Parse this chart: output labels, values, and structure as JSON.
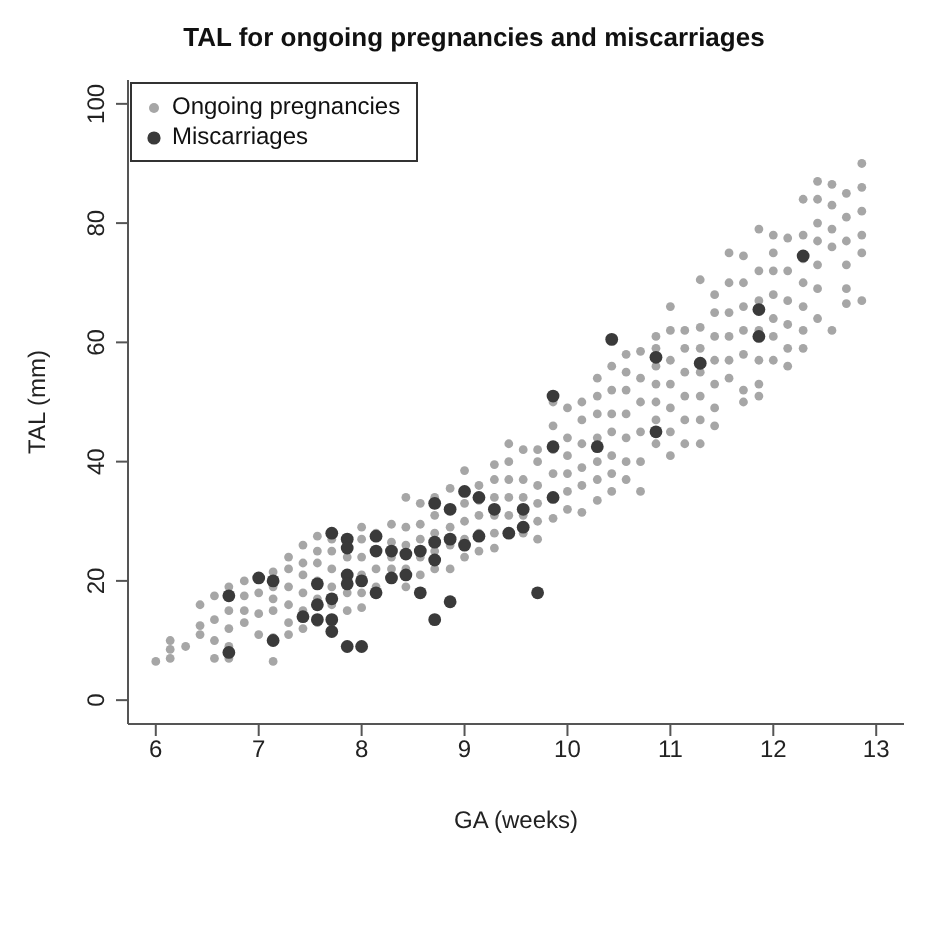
{
  "chart_data": {
    "type": "scatter",
    "title": "TAL for ongoing pregnancies and miscarriages",
    "xlabel": "GA (weeks)",
    "ylabel": "TAL (mm)",
    "xlim": [
      5.73,
      13.27
    ],
    "ylim": [
      -4,
      104
    ],
    "xticks": [
      6,
      7,
      8,
      9,
      10,
      11,
      12,
      13
    ],
    "yticks": [
      0,
      20,
      40,
      60,
      80,
      100
    ],
    "legend": "top left",
    "marker": "circle",
    "series": [
      {
        "name": "Ongoing pregnancies",
        "color": "#a6a6a6",
        "x": [
          6.0,
          6.14,
          6.14,
          6.14,
          6.29,
          6.43,
          6.43,
          6.43,
          6.57,
          6.57,
          6.57,
          6.57,
          6.71,
          6.71,
          6.71,
          6.71,
          6.71,
          6.86,
          6.86,
          6.86,
          6.86,
          7.0,
          7.0,
          7.0,
          7.14,
          7.14,
          7.14,
          7.14,
          7.14,
          7.14,
          7.29,
          7.29,
          7.29,
          7.29,
          7.29,
          7.29,
          7.43,
          7.43,
          7.43,
          7.43,
          7.43,
          7.43,
          7.57,
          7.57,
          7.57,
          7.57,
          7.57,
          7.57,
          7.71,
          7.71,
          7.71,
          7.71,
          7.71,
          7.71,
          7.86,
          7.86,
          7.86,
          8.0,
          8.0,
          8.0,
          8.0,
          8.0,
          8.0,
          8.14,
          8.14,
          8.14,
          8.29,
          8.29,
          8.29,
          8.29,
          8.43,
          8.43,
          8.43,
          8.43,
          8.43,
          8.57,
          8.57,
          8.57,
          8.57,
          8.57,
          8.71,
          8.71,
          8.71,
          8.71,
          8.71,
          8.86,
          8.86,
          8.86,
          8.86,
          9.0,
          9.0,
          9.0,
          9.0,
          9.0,
          9.14,
          9.14,
          9.14,
          9.14,
          9.14,
          9.29,
          9.29,
          9.29,
          9.29,
          9.29,
          9.29,
          9.43,
          9.43,
          9.43,
          9.43,
          9.43,
          9.57,
          9.57,
          9.57,
          9.57,
          9.57,
          9.71,
          9.71,
          9.71,
          9.71,
          9.71,
          9.71,
          9.86,
          9.86,
          9.86,
          9.86,
          9.86,
          10.0,
          10.0,
          10.0,
          10.0,
          10.0,
          10.0,
          10.14,
          10.14,
          10.14,
          10.14,
          10.14,
          10.14,
          10.29,
          10.29,
          10.29,
          10.29,
          10.29,
          10.29,
          10.29,
          10.43,
          10.43,
          10.43,
          10.43,
          10.43,
          10.43,
          10.43,
          10.57,
          10.57,
          10.57,
          10.57,
          10.57,
          10.57,
          10.57,
          10.71,
          10.71,
          10.71,
          10.71,
          10.71,
          10.71,
          10.86,
          10.86,
          10.86,
          10.86,
          10.86,
          10.86,
          10.86,
          11.0,
          11.0,
          11.0,
          11.0,
          11.0,
          11.0,
          11.0,
          11.14,
          11.14,
          11.14,
          11.14,
          11.14,
          11.14,
          11.29,
          11.29,
          11.29,
          11.29,
          11.29,
          11.29,
          11.29,
          11.43,
          11.43,
          11.43,
          11.43,
          11.43,
          11.43,
          11.43,
          11.57,
          11.57,
          11.57,
          11.57,
          11.57,
          11.57,
          11.71,
          11.71,
          11.71,
          11.71,
          11.71,
          11.71,
          11.71,
          11.86,
          11.86,
          11.86,
          11.86,
          11.86,
          11.86,
          11.86,
          12.0,
          12.0,
          12.0,
          12.0,
          12.0,
          12.0,
          12.0,
          12.14,
          12.14,
          12.14,
          12.14,
          12.14,
          12.14,
          12.29,
          12.29,
          12.29,
          12.29,
          12.29,
          12.29,
          12.29,
          12.43,
          12.43,
          12.43,
          12.43,
          12.43,
          12.43,
          12.43,
          12.57,
          12.57,
          12.57,
          12.57,
          12.57,
          12.71,
          12.71,
          12.71,
          12.71,
          12.71,
          12.71,
          12.86,
          12.86,
          12.86,
          12.86,
          12.86,
          12.86
        ],
        "values": [
          6.5,
          7,
          8.5,
          10,
          9,
          11,
          12.5,
          16,
          7,
          10,
          13.5,
          17.5,
          7,
          9,
          12,
          15,
          19,
          13,
          15,
          17.5,
          20,
          11,
          14.5,
          18,
          6.5,
          10.5,
          15,
          17,
          19,
          21.5,
          11,
          13,
          16,
          19,
          22,
          24,
          12,
          15,
          18,
          21,
          23,
          26,
          13,
          17,
          20,
          23,
          25,
          27.5,
          13,
          16,
          19,
          22,
          25,
          27,
          15,
          18,
          24,
          15.5,
          18,
          21,
          24,
          27,
          29,
          19,
          22,
          28,
          22,
          24,
          26.5,
          29.5,
          19,
          22,
          26,
          29,
          34,
          21,
          24,
          27,
          29.5,
          33,
          22,
          25,
          28,
          31,
          34,
          22,
          26,
          29,
          35.5,
          24,
          27,
          30,
          33,
          38.5,
          25,
          28,
          31,
          33.5,
          36,
          25.5,
          28,
          31,
          34,
          37,
          39.5,
          31,
          34,
          37,
          40,
          43,
          28,
          31,
          34,
          37,
          42,
          27,
          30,
          33,
          36,
          40,
          42,
          30.5,
          38,
          42,
          46,
          50,
          32,
          35,
          38,
          41,
          44,
          49,
          31.5,
          36,
          39,
          43,
          47,
          50,
          33.5,
          37,
          40,
          44,
          48,
          51,
          54,
          35,
          38,
          41,
          45,
          48,
          52,
          56,
          37,
          40,
          44,
          48,
          52,
          55,
          58,
          35,
          40,
          45,
          50,
          54,
          58.5,
          43,
          47,
          50,
          53,
          56,
          59,
          61,
          41,
          45,
          49,
          53,
          57,
          62,
          66,
          43,
          47,
          51,
          55,
          59,
          62,
          43,
          47,
          51,
          55,
          59,
          62.5,
          70.5,
          46,
          49,
          53,
          57,
          61,
          65,
          68,
          54,
          57,
          61,
          65,
          70,
          75,
          50,
          52,
          58,
          62,
          66,
          70,
          74.5,
          51,
          53,
          57,
          62,
          67,
          72,
          79,
          57,
          61,
          64,
          68,
          72,
          75,
          78,
          56,
          59,
          63,
          67,
          72,
          77.5,
          59,
          62,
          66,
          70,
          74,
          78,
          84,
          64,
          69,
          73,
          77,
          80,
          84,
          87,
          62,
          76,
          79,
          83,
          86.5,
          66.5,
          69,
          73,
          77,
          81,
          85,
          67,
          75,
          78,
          82,
          86,
          90
        ]
      },
      {
        "name": "Miscarriages",
        "color": "#3a3a3a",
        "x": [
          6.71,
          6.71,
          7.0,
          7.14,
          7.14,
          7.43,
          7.57,
          7.57,
          7.57,
          7.71,
          7.71,
          7.71,
          7.71,
          7.86,
          7.86,
          7.86,
          7.86,
          7.86,
          8.0,
          8.0,
          8.14,
          8.14,
          8.14,
          8.29,
          8.29,
          8.43,
          8.43,
          8.57,
          8.57,
          8.71,
          8.71,
          8.71,
          8.71,
          8.86,
          8.86,
          8.86,
          9.0,
          9.0,
          9.14,
          9.14,
          9.29,
          9.43,
          9.57,
          9.57,
          9.71,
          9.86,
          9.86,
          9.86,
          10.29,
          10.43,
          10.86,
          10.86,
          11.29,
          11.86,
          11.86,
          12.29
        ],
        "values": [
          8,
          17.5,
          20.5,
          20,
          10,
          14,
          19.5,
          16,
          13.5,
          28,
          17,
          13.5,
          11.5,
          27,
          25.5,
          21,
          19.5,
          9,
          20,
          9,
          27.5,
          25,
          18,
          25,
          20.5,
          24.5,
          21,
          25,
          18,
          33,
          26.5,
          23.5,
          13.5,
          32,
          27,
          16.5,
          35,
          26,
          34,
          27.5,
          32,
          28,
          32,
          29,
          18,
          51,
          42.5,
          34,
          42.5,
          60.5,
          57.5,
          45,
          56.5,
          65.5,
          61,
          74.5
        ]
      }
    ]
  }
}
